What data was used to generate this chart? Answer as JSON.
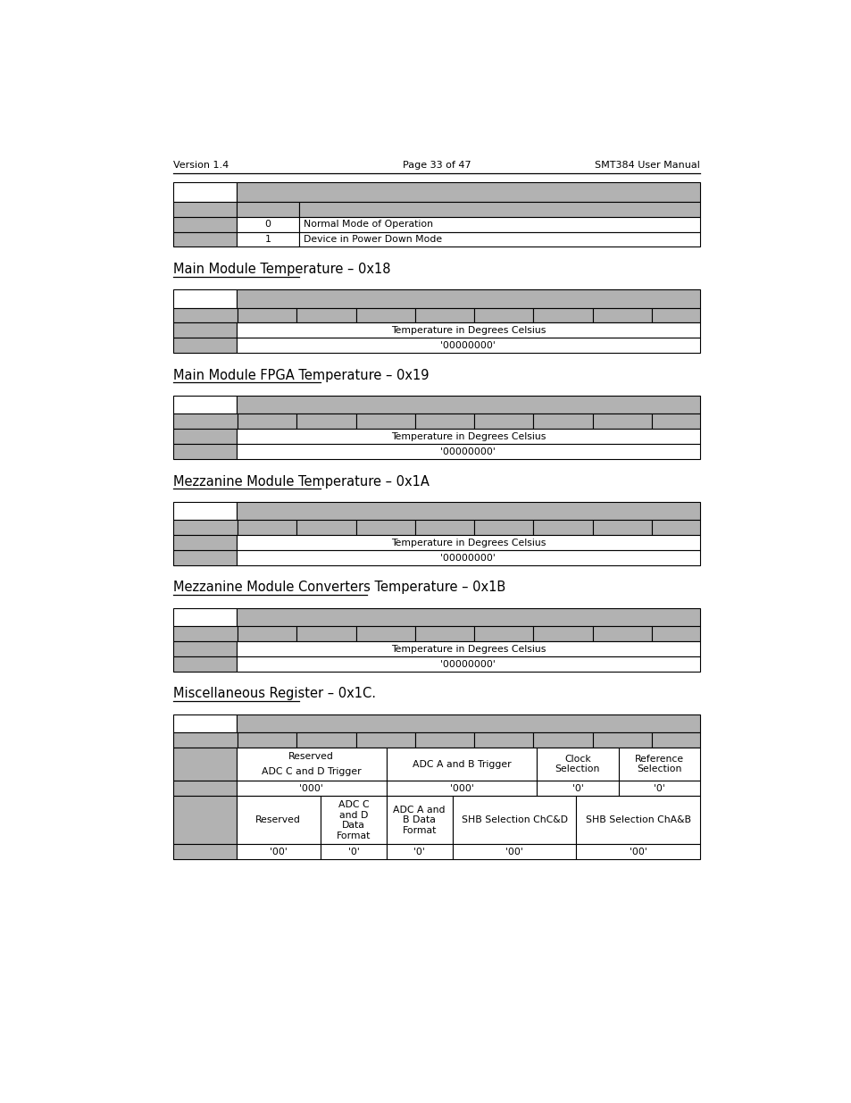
{
  "page_header_left": "Version 1.4",
  "page_header_center": "Page 33 of 47",
  "page_header_right": "SMT384 User Manual",
  "bg_color": "#ffffff",
  "gray_color": "#b2b2b2",
  "black": "#000000",
  "title_0x18": "Main Module Temperature – 0x18",
  "title_0x19": "Main Module FPGA Temperature – 0x19",
  "title_0x1a": "Mezzanine Module Temperature – 0x1A",
  "title_0x1b": "Mezzanine Module Converters Temperature – 0x1B",
  "title_0x1c": "Miscellaneous Register – 0x1C.",
  "temp_desc": "Temperature in Degrees Celsius",
  "temp_default": "'00000000'",
  "powerdown_0": "0",
  "powerdown_0_text": "Normal Mode of Operation",
  "powerdown_1": "1",
  "powerdown_1_text": "Device in Power Down Mode",
  "misc_label_reserved_cd": "Reserved",
  "misc_label_adc_cd_trigger": "ADC C and D Trigger",
  "misc_label_adc_ab": "ADC A and B Trigger",
  "misc_label_clock": "Clock\nSelection",
  "misc_label_ref": "Reference\nSelection",
  "misc_def_000a": "'000'",
  "misc_def_000b": "'000'",
  "misc_def_0a": "'0'",
  "misc_def_0b": "'0'",
  "misc_desc_reserved": "Reserved",
  "misc_desc_adccd": "ADC C\nand D\nData\nFormat",
  "misc_desc_adcab": "ADC A and\nB Data\nFormat",
  "misc_desc_shbcd": "SHB Selection ChC&D",
  "misc_desc_shbab": "SHB Selection ChA&B",
  "misc_def2_00a": "'00'",
  "misc_def2_0a": "'0'",
  "misc_def2_0b": "'0'",
  "misc_def2_00b": "'00'",
  "misc_def2_00c": "'00'"
}
